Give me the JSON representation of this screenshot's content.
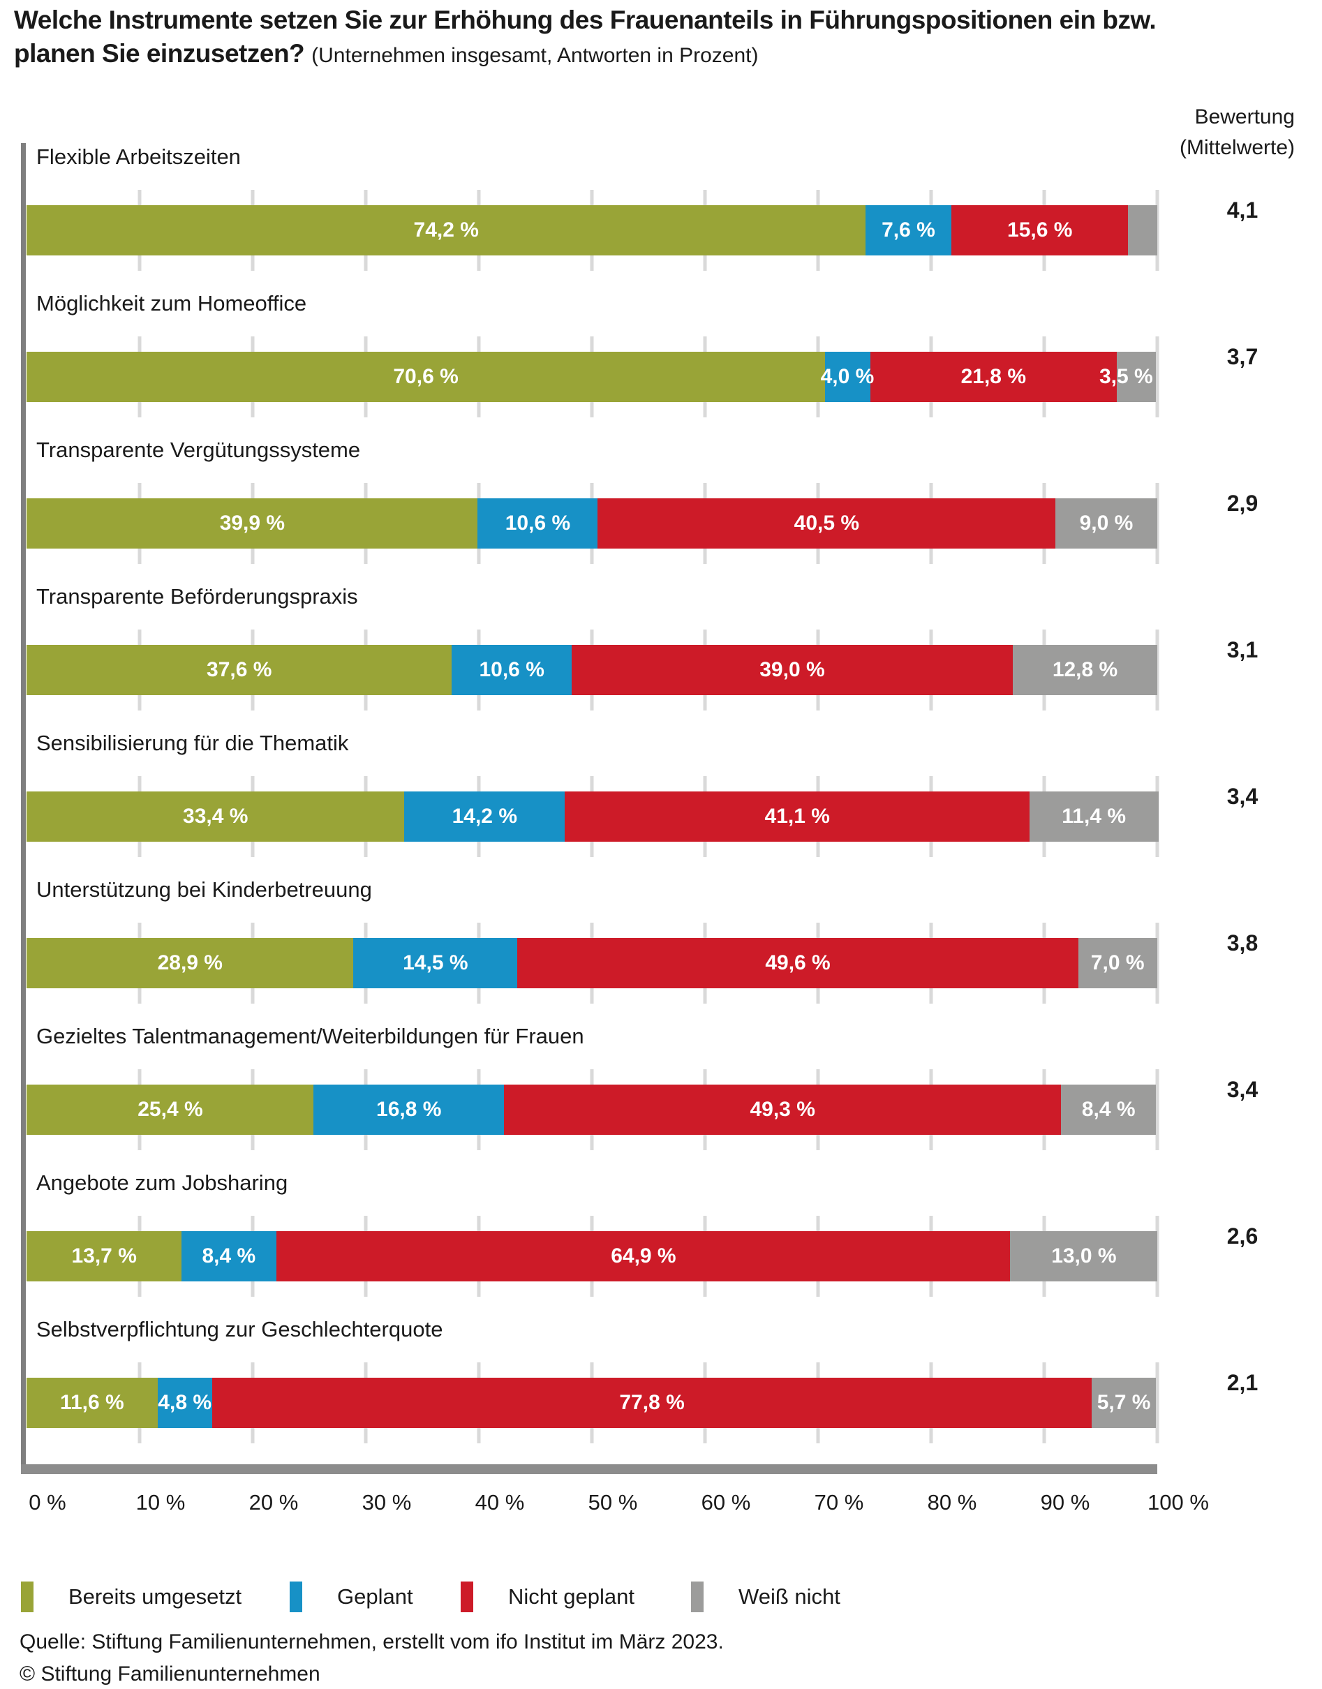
{
  "title": {
    "bold_line1": "Welche Instrumente setzen Sie zur Erhöhung des Frauenanteils in Führungspositionen ein bzw.",
    "bold_line2": "planen Sie einzusetzen?",
    "subtitle": "(Unternehmen insgesamt, Antworten in Prozent)"
  },
  "rating_header": {
    "line1": "Bewertung",
    "line2": "(Mittelwerte)"
  },
  "colors": {
    "implemented": "#99A437",
    "planned": "#1791C6",
    "not_planned": "#CD1B28",
    "dont_know": "#9C9C9B",
    "axis": "#7F7F7F",
    "baseline": "#8C8C8C",
    "gridline": "#D9D9D9",
    "text": "#1A1A1A",
    "value_label": "#FFFFFF"
  },
  "chart_data": {
    "type": "bar",
    "orientation": "horizontal-stacked",
    "x_range": [
      0,
      100
    ],
    "x_tick_labels": [
      "0 %",
      "10 %",
      "20 %",
      "30 %",
      "40 %",
      "50 %",
      "60 %",
      "70 %",
      "80 %",
      "90 %",
      "100 %"
    ],
    "grid": "vertical-light-gray",
    "legend_position": "bottom",
    "categories": [
      "Flexible Arbeitszeiten",
      "Möglichkeit zum Homeoffice",
      "Transparente Vergütungssysteme",
      "Transparente Beförderungspraxis",
      "Sensibilisierung für die Thematik",
      "Unterstützung bei Kinderbetreuung",
      "Gezieltes Talentmanagement/Weiterbildungen für Frauen",
      "Angebote zum Jobsharing",
      "Selbstverpflichtung zur Geschlechterquote"
    ],
    "series": [
      {
        "name": "Bereits umgesetzt",
        "color": "#99A437",
        "values": [
          74.2,
          70.6,
          39.9,
          37.6,
          33.4,
          28.9,
          25.4,
          13.7,
          11.6
        ],
        "labels": [
          "74,2 %",
          "70,6 %",
          "39,9 %",
          "37,6 %",
          "33,4 %",
          "28,9 %",
          "25,4 %",
          "13,7 %",
          "11,6 %"
        ]
      },
      {
        "name": "Geplant",
        "color": "#1791C6",
        "values": [
          7.6,
          4.0,
          10.6,
          10.6,
          14.2,
          14.5,
          16.8,
          8.4,
          4.8
        ],
        "labels": [
          "7,6 %",
          "4,0 %",
          "10,6 %",
          "10,6 %",
          "14,2 %",
          "14,5 %",
          "16,8 %",
          "8,4 %",
          "4,8 %"
        ]
      },
      {
        "name": "Nicht geplant",
        "color": "#CD1B28",
        "values": [
          15.6,
          21.8,
          40.5,
          39.0,
          41.1,
          49.6,
          49.3,
          64.9,
          77.8
        ],
        "labels": [
          "15,6 %",
          "21,8 %",
          "40,5 %",
          "39,0 %",
          "41,1 %",
          "49,6 %",
          "49,3 %",
          "64,9 %",
          "77,8 %"
        ]
      },
      {
        "name": "Weiß nicht",
        "color": "#9C9C9B",
        "values": [
          2.6,
          3.5,
          9.0,
          12.8,
          11.4,
          7.0,
          8.4,
          13.0,
          5.7
        ],
        "labels": [
          "",
          "3,5 %",
          "9,0 %",
          "12,8 %",
          "11,4 %",
          "7,0 %",
          "8,4 %",
          "13,0 %",
          "5,7 %"
        ]
      }
    ],
    "ratings_column": {
      "header": "Bewertung (Mittelwerte)",
      "values": [
        "4,1",
        "3,7",
        "2,9",
        "3,1",
        "3,4",
        "3,8",
        "3,4",
        "2,6",
        "2,1"
      ]
    },
    "legend": [
      {
        "label": "Bereits umgesetzt",
        "color": "#99A437"
      },
      {
        "label": "Geplant",
        "color": "#1791C6"
      },
      {
        "label": "Nicht geplant",
        "color": "#CD1B28"
      },
      {
        "label": "Weiß nicht",
        "color": "#9C9C9B"
      }
    ]
  },
  "footer": {
    "source": "Quelle: Stiftung Familienunternehmen, erstellt vom ifo Institut im März 2023.",
    "copyright": "© Stiftung Familienunternehmen"
  }
}
